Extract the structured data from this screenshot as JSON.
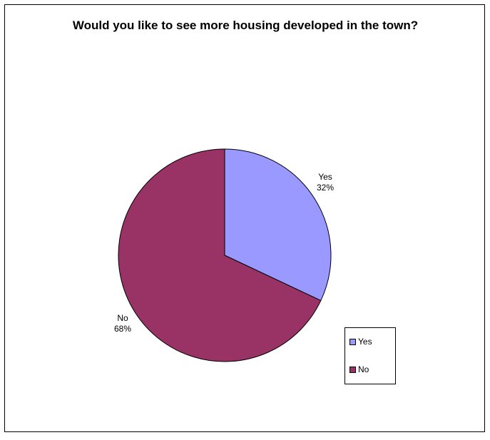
{
  "chart_data": {
    "type": "pie",
    "title": "Would you like to see more housing developed in the town?",
    "slices": [
      {
        "name": "Yes",
        "value": 32,
        "label": "32%",
        "color": "#9999FF"
      },
      {
        "name": "No",
        "value": 68,
        "label": "68%",
        "color": "#993366"
      }
    ],
    "legend": {
      "position": "bottom-right",
      "entries": [
        "Yes",
        "No"
      ]
    }
  }
}
